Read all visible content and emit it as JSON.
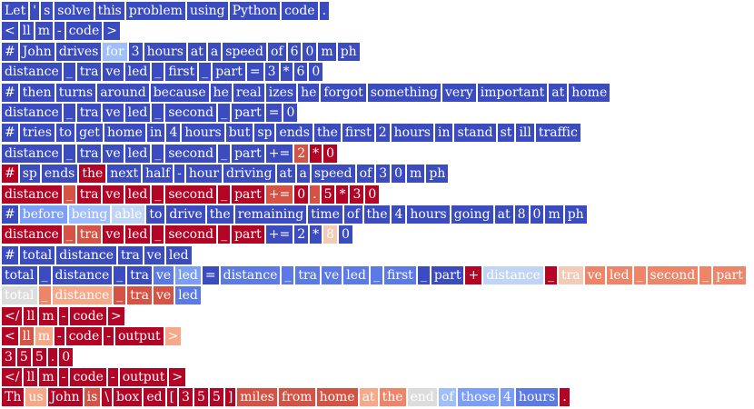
{
  "palette": {
    "0": "#3b4cc0",
    "1": "#5b7ae5",
    "2": "#7b9ff9",
    "3": "#9ebeff",
    "4": "#c0d4f5",
    "5": "#dddcdc",
    "6": "#f2cbb7",
    "7": "#f7a889",
    "8": "#ee8468",
    "9": "#d65244",
    "10": "#b40426"
  },
  "lines": [
    [
      [
        "Let",
        0
      ],
      [
        "'",
        0
      ],
      [
        "s",
        0
      ],
      [
        "solve",
        0
      ],
      [
        "this",
        0
      ],
      [
        "problem",
        0
      ],
      [
        "using",
        0
      ],
      [
        "Python",
        0
      ],
      [
        "code",
        0
      ],
      [
        ".",
        0
      ]
    ],
    [
      [
        "<",
        0
      ],
      [
        "ll",
        0
      ],
      [
        "m",
        0
      ],
      [
        "-",
        0
      ],
      [
        "code",
        0
      ],
      [
        ">",
        0
      ]
    ],
    [
      [
        "#",
        0
      ],
      [
        "John",
        0
      ],
      [
        "drives",
        0
      ],
      [
        "for",
        3
      ],
      [
        "3",
        0
      ],
      [
        "hours",
        0
      ],
      [
        "at",
        0
      ],
      [
        "a",
        0
      ],
      [
        "speed",
        0
      ],
      [
        "of",
        0
      ],
      [
        "6",
        0
      ],
      [
        "0",
        0
      ],
      [
        "m",
        0
      ],
      [
        "ph",
        0
      ]
    ],
    [
      [
        "distance",
        0
      ],
      [
        "_",
        0
      ],
      [
        "tra",
        0
      ],
      [
        "ve",
        0
      ],
      [
        "led",
        0
      ],
      [
        "_",
        0
      ],
      [
        "first",
        0
      ],
      [
        "_",
        0
      ],
      [
        "part",
        0
      ],
      [
        "=",
        0
      ],
      [
        "3",
        0
      ],
      [
        "*",
        0
      ],
      [
        "6",
        0
      ],
      [
        "0",
        0
      ]
    ],
    [
      [
        "#",
        0
      ],
      [
        "then",
        0
      ],
      [
        "turns",
        0
      ],
      [
        "around",
        0
      ],
      [
        "because",
        0
      ],
      [
        "he",
        0
      ],
      [
        "real",
        0
      ],
      [
        "izes",
        0
      ],
      [
        "he",
        0
      ],
      [
        "forgot",
        0
      ],
      [
        "something",
        0
      ],
      [
        "very",
        0
      ],
      [
        "important",
        0
      ],
      [
        "at",
        0
      ],
      [
        "home",
        0
      ]
    ],
    [
      [
        "distance",
        0
      ],
      [
        "_",
        0
      ],
      [
        "tra",
        0
      ],
      [
        "ve",
        0
      ],
      [
        "led",
        0
      ],
      [
        "_",
        0
      ],
      [
        "second",
        0
      ],
      [
        "_",
        0
      ],
      [
        "part",
        0
      ],
      [
        "=",
        0
      ],
      [
        "0",
        0
      ]
    ],
    [
      [
        "#",
        0
      ],
      [
        "tries",
        0
      ],
      [
        "to",
        0
      ],
      [
        "get",
        0
      ],
      [
        "home",
        0
      ],
      [
        "in",
        0
      ],
      [
        "4",
        0
      ],
      [
        "hours",
        0
      ],
      [
        "but",
        0
      ],
      [
        "sp",
        0
      ],
      [
        "ends",
        0
      ],
      [
        "the",
        0
      ],
      [
        "first",
        0
      ],
      [
        "2",
        0
      ],
      [
        "hours",
        0
      ],
      [
        "in",
        0
      ],
      [
        "stand",
        0
      ],
      [
        "st",
        0
      ],
      [
        "ill",
        0
      ],
      [
        "traffic",
        0
      ]
    ],
    [
      [
        "distance",
        0
      ],
      [
        "_",
        0
      ],
      [
        "tra",
        0
      ],
      [
        "ve",
        0
      ],
      [
        "led",
        0
      ],
      [
        "_",
        0
      ],
      [
        "second",
        0
      ],
      [
        "_",
        0
      ],
      [
        "part",
        0
      ],
      [
        "+=",
        0
      ],
      [
        "2",
        9
      ],
      [
        "*",
        10
      ],
      [
        "0",
        10
      ]
    ],
    [
      [
        "#",
        10
      ],
      [
        "sp",
        0
      ],
      [
        "ends",
        0
      ],
      [
        "the",
        10
      ],
      [
        "next",
        0
      ],
      [
        "half",
        0
      ],
      [
        "-",
        0
      ],
      [
        "hour",
        0
      ],
      [
        "driving",
        0
      ],
      [
        "at",
        0
      ],
      [
        "a",
        0
      ],
      [
        "speed",
        0
      ],
      [
        "of",
        0
      ],
      [
        "3",
        0
      ],
      [
        "0",
        0
      ],
      [
        "m",
        0
      ],
      [
        "ph",
        0
      ]
    ],
    [
      [
        "distance",
        10
      ],
      [
        "_",
        9
      ],
      [
        "tra",
        10
      ],
      [
        "ve",
        10
      ],
      [
        "led",
        10
      ],
      [
        "_",
        10
      ],
      [
        "second",
        10
      ],
      [
        "_",
        10
      ],
      [
        "part",
        10
      ],
      [
        "+=",
        9
      ],
      [
        "0",
        10
      ],
      [
        ".",
        9
      ],
      [
        "5",
        10
      ],
      [
        "*",
        10
      ],
      [
        "3",
        10
      ],
      [
        "0",
        10
      ]
    ],
    [
      [
        "#",
        0
      ],
      [
        "before",
        2
      ],
      [
        "being",
        3
      ],
      [
        "able",
        4
      ],
      [
        "to",
        0
      ],
      [
        "drive",
        0
      ],
      [
        "the",
        0
      ],
      [
        "remaining",
        0
      ],
      [
        "time",
        0
      ],
      [
        "of",
        0
      ],
      [
        "the",
        0
      ],
      [
        "4",
        0
      ],
      [
        "hours",
        0
      ],
      [
        "going",
        0
      ],
      [
        "at",
        0
      ],
      [
        "8",
        0
      ],
      [
        "0",
        0
      ],
      [
        "m",
        0
      ],
      [
        "ph",
        0
      ]
    ],
    [
      [
        "distance",
        10
      ],
      [
        "_",
        9
      ],
      [
        "tra",
        9
      ],
      [
        "ve",
        10
      ],
      [
        "led",
        10
      ],
      [
        "_",
        10
      ],
      [
        "second",
        10
      ],
      [
        "_",
        10
      ],
      [
        "part",
        10
      ],
      [
        "+=",
        0
      ],
      [
        "2",
        0
      ],
      [
        "*",
        0
      ],
      [
        "8",
        6
      ],
      [
        "0",
        0
      ]
    ],
    [
      [
        "#",
        0
      ],
      [
        "total",
        0
      ],
      [
        "distance",
        0
      ],
      [
        "tra",
        0
      ],
      [
        "ve",
        0
      ],
      [
        "led",
        0
      ]
    ],
    [
      [
        "total",
        0
      ],
      [
        "_",
        0
      ],
      [
        "distance",
        0
      ],
      [
        "_",
        0
      ],
      [
        "tra",
        0
      ],
      [
        "ve",
        1
      ],
      [
        "led",
        2
      ],
      [
        "=",
        0
      ],
      [
        "distance",
        1
      ],
      [
        "_",
        1
      ],
      [
        "tra",
        1
      ],
      [
        "ve",
        1
      ],
      [
        "led",
        1
      ],
      [
        "_",
        1
      ],
      [
        "first",
        1
      ],
      [
        "_",
        0
      ],
      [
        "part",
        0
      ],
      [
        "+",
        10
      ],
      [
        "distance",
        4
      ],
      [
        "_",
        10
      ],
      [
        "tra",
        6
      ],
      [
        "ve",
        8
      ],
      [
        "led",
        8
      ],
      [
        "_",
        8
      ],
      [
        "second",
        8
      ],
      [
        "_",
        8
      ],
      [
        "part",
        8
      ]
    ],
    [
      [
        "total",
        5
      ],
      [
        "_",
        8
      ],
      [
        "distance",
        7
      ],
      [
        "_",
        9
      ],
      [
        "tra",
        9
      ],
      [
        "ve",
        9
      ],
      [
        "led",
        1
      ]
    ],
    [
      [
        "</",
        10
      ],
      [
        "ll",
        10
      ],
      [
        "m",
        10
      ],
      [
        "-",
        10
      ],
      [
        "code",
        10
      ],
      [
        ">",
        10
      ]
    ],
    [
      [
        "<",
        10
      ],
      [
        "ll",
        9
      ],
      [
        "m",
        7
      ],
      [
        "-",
        10
      ],
      [
        "code",
        10
      ],
      [
        "-",
        10
      ],
      [
        "output",
        10
      ],
      [
        ">",
        7
      ]
    ],
    [
      [
        "3",
        10
      ],
      [
        "5",
        10
      ],
      [
        "5",
        10
      ],
      [
        ".",
        10
      ],
      [
        "0",
        10
      ]
    ],
    [
      [
        "</",
        10
      ],
      [
        "ll",
        10
      ],
      [
        "m",
        10
      ],
      [
        "-",
        10
      ],
      [
        "code",
        10
      ],
      [
        "-",
        10
      ],
      [
        "output",
        10
      ],
      [
        ">",
        10
      ]
    ],
    [
      [
        "Th",
        10
      ],
      [
        "us",
        7
      ],
      [
        "John",
        10
      ],
      [
        "is",
        9
      ],
      [
        "\\",
        10
      ],
      [
        "box",
        10
      ],
      [
        "ed",
        10
      ],
      [
        "[",
        10
      ],
      [
        "3",
        10
      ],
      [
        "5",
        10
      ],
      [
        "5",
        10
      ],
      [
        "]",
        10
      ],
      [
        "miles",
        9
      ],
      [
        "from",
        9
      ],
      [
        "home",
        9
      ],
      [
        "at",
        7
      ],
      [
        "the",
        8
      ],
      [
        "end",
        5
      ],
      [
        "of",
        3
      ],
      [
        "those",
        2
      ],
      [
        "4",
        2
      ],
      [
        "hours",
        1
      ],
      [
        ".",
        10
      ]
    ]
  ]
}
